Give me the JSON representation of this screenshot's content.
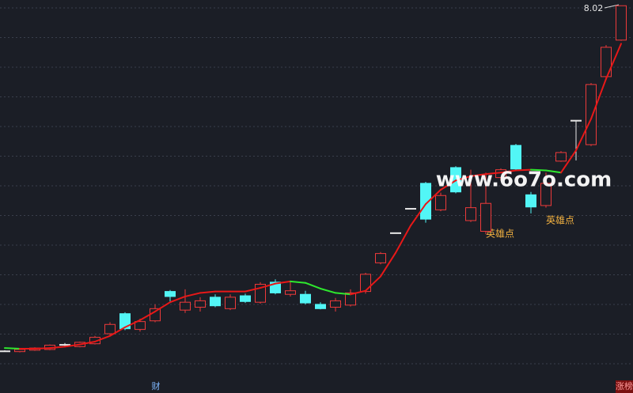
{
  "chart_data": {
    "type": "candlestick",
    "categories": [
      null,
      null,
      null,
      null,
      null,
      null,
      null,
      null,
      null,
      null,
      null,
      null,
      null,
      null,
      null,
      null,
      null,
      null,
      null,
      null,
      null,
      null,
      null,
      null,
      null,
      null,
      null,
      null,
      null,
      null,
      null,
      null,
      null,
      null,
      null,
      null,
      null,
      null,
      null,
      null,
      null,
      null
    ],
    "open": [
      3.2,
      3.19,
      3.21,
      3.22,
      3.29,
      3.26,
      3.3,
      3.44,
      3.72,
      3.5,
      3.62,
      4.03,
      3.77,
      3.81,
      3.95,
      3.79,
      3.97,
      3.88,
      4.16,
      3.99,
      3.99,
      3.85,
      3.81,
      3.84,
      4.03,
      4.43,
      4.85,
      5.19,
      5.54,
      5.17,
      5.76,
      5.02,
      4.87,
      5.62,
      6.07,
      5.38,
      5.23,
      5.85,
      6.42,
      6.08,
      7.03,
      7.54
    ],
    "high": [
      3.21,
      3.23,
      3.25,
      3.29,
      3.31,
      3.33,
      3.41,
      3.6,
      3.74,
      3.65,
      3.85,
      4.05,
      4.06,
      3.95,
      3.99,
      3.99,
      4.0,
      4.16,
      4.2,
      4.18,
      4.04,
      3.88,
      3.94,
      4.06,
      4.29,
      4.58,
      4.85,
      5.19,
      5.56,
      5.41,
      5.78,
      5.73,
      5.69,
      5.75,
      6.09,
      5.42,
      5.69,
      5.99,
      6.42,
      6.94,
      7.47,
      8.02
    ],
    "low": [
      3.19,
      3.18,
      3.2,
      3.21,
      3.26,
      3.25,
      3.29,
      3.42,
      3.49,
      3.47,
      3.6,
      3.88,
      3.73,
      3.75,
      3.81,
      3.77,
      3.87,
      3.86,
      3.99,
      3.96,
      3.85,
      3.78,
      3.75,
      3.82,
      4.0,
      4.41,
      4.85,
      5.19,
      4.99,
      5.15,
      5.4,
      5.0,
      4.83,
      5.58,
      5.72,
      5.12,
      5.2,
      5.84,
      5.86,
      6.06,
      7.01,
      7.53
    ],
    "close": [
      3.2,
      3.22,
      3.24,
      3.28,
      3.29,
      3.32,
      3.39,
      3.57,
      3.51,
      3.61,
      3.79,
      3.96,
      3.88,
      3.9,
      3.83,
      3.95,
      3.89,
      4.13,
      4.01,
      4.04,
      3.87,
      3.79,
      3.9,
      4.01,
      4.27,
      4.56,
      4.85,
      5.19,
      5.04,
      5.37,
      5.42,
      5.2,
      5.26,
      5.73,
      5.74,
      5.21,
      5.54,
      5.97,
      6.42,
      6.92,
      7.44,
      8.02
    ],
    "ma": [
      3.24,
      3.23,
      3.23,
      3.24,
      3.26,
      3.29,
      3.33,
      3.41,
      3.53,
      3.63,
      3.75,
      3.88,
      3.96,
      4.01,
      4.03,
      4.03,
      4.03,
      4.08,
      4.14,
      4.17,
      4.15,
      4.07,
      4.01,
      3.99,
      4.04,
      4.24,
      4.57,
      4.95,
      5.25,
      5.45,
      5.58,
      5.64,
      5.67,
      5.69,
      5.72,
      5.73,
      5.72,
      5.69,
      6.0,
      6.44,
      7.0,
      7.49
    ],
    "up_color": "#ee3a3a",
    "down_color": "#52f6f6",
    "flat_color": "#e8e8e8",
    "ma_up_color": "#e81818",
    "ma_down_color": "#2ee82e",
    "ylim": [
      2.8,
      8.1
    ],
    "annotations": [
      "8.02",
      "英雄点",
      "英雄点"
    ],
    "footer_labels": [
      "财",
      "涨榜"
    ],
    "watermark": "www.6o7o.com"
  }
}
